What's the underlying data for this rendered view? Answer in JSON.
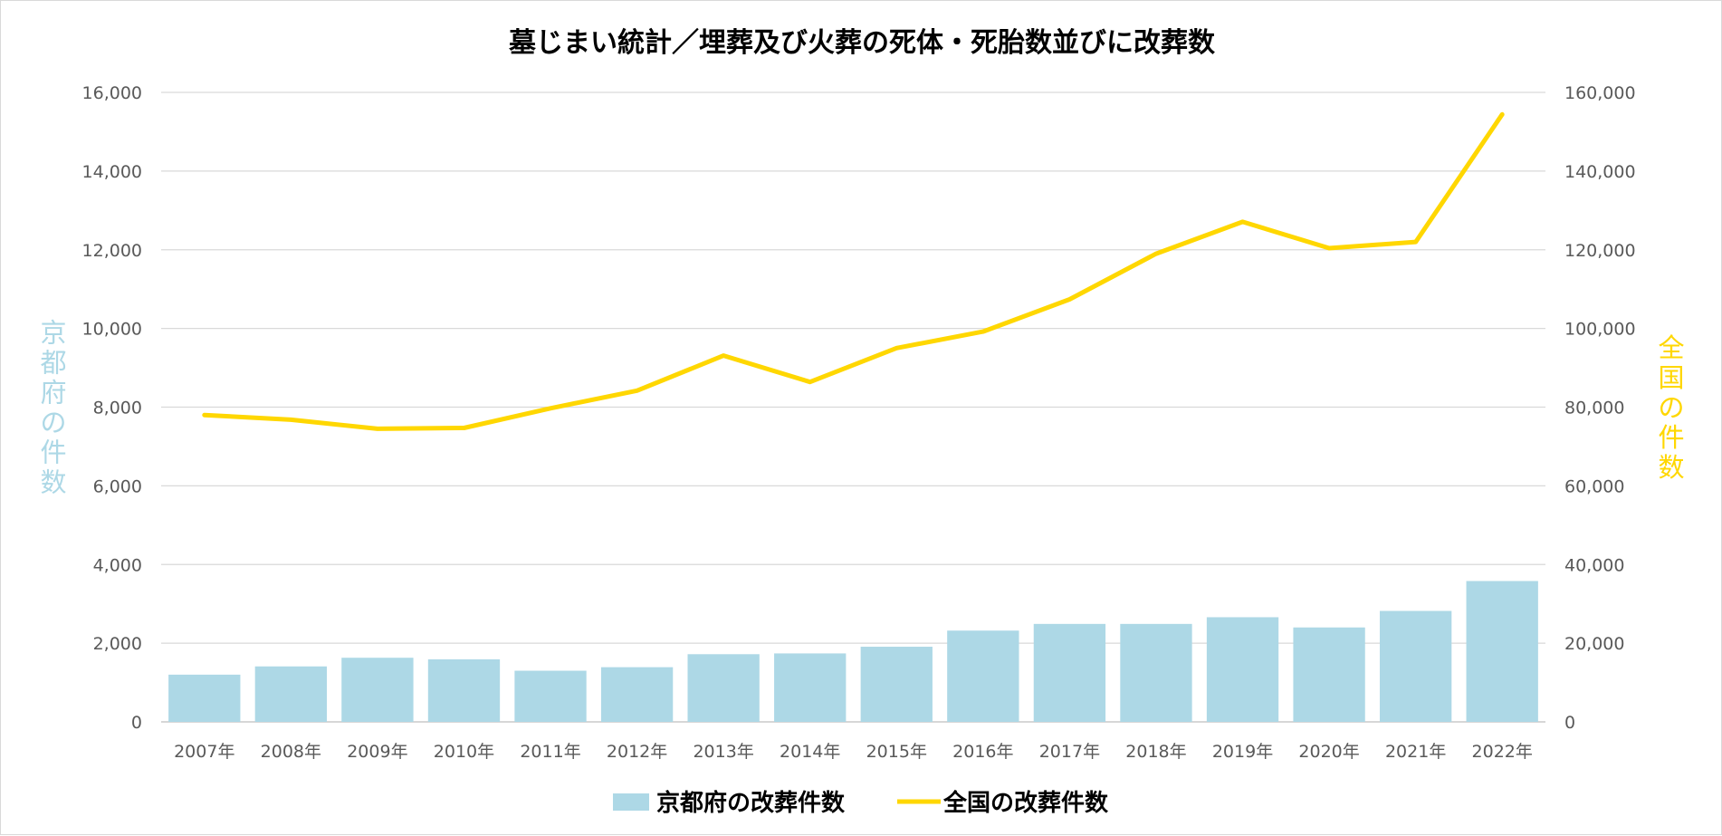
{
  "chart_data": {
    "type": "bar",
    "title": "墓じまい統計／埋葬及び火葬の死体・死胎数並びに改葬数",
    "categories": [
      "2007年",
      "2008年",
      "2009年",
      "2010年",
      "2011年",
      "2012年",
      "2013年",
      "2014年",
      "2015年",
      "2016年",
      "2017年",
      "2018年",
      "2019年",
      "2020年",
      "2021年",
      "2022年"
    ],
    "y_left": {
      "label": "京都府の件数",
      "ylim": [
        0,
        16000
      ],
      "ticks": [
        "0",
        "2,000",
        "4,000",
        "6,000",
        "8,000",
        "10,000",
        "12,000",
        "14,000",
        "16,000"
      ],
      "tick_values": [
        0,
        2000,
        4000,
        6000,
        8000,
        10000,
        12000,
        14000,
        16000
      ]
    },
    "y_right": {
      "label": "全国の件数",
      "ylim": [
        0,
        160000
      ],
      "ticks": [
        "0",
        "20,000",
        "40,000",
        "60,000",
        "80,000",
        "100,000",
        "120,000",
        "140,000",
        "160,000"
      ],
      "tick_values": [
        0,
        20000,
        40000,
        60000,
        80000,
        100000,
        120000,
        140000,
        160000
      ]
    },
    "series": [
      {
        "name": "京都府の改葬件数",
        "type": "bar",
        "axis": "left",
        "color": "#add8e6",
        "values": [
          1200,
          1410,
          1630,
          1590,
          1300,
          1390,
          1720,
          1740,
          1910,
          2320,
          2490,
          2490,
          2660,
          2400,
          2820,
          3580
        ]
      },
      {
        "name": "全国の改葬件数",
        "type": "line",
        "axis": "right",
        "color": "#ffd700",
        "values": [
          78000,
          76800,
          74500,
          74700,
          79700,
          84200,
          93100,
          86400,
          95000,
          99200,
          107400,
          119000,
          127100,
          120400,
          122000,
          154400
        ]
      }
    ],
    "grid": true,
    "legend_position": "bottom-center"
  }
}
